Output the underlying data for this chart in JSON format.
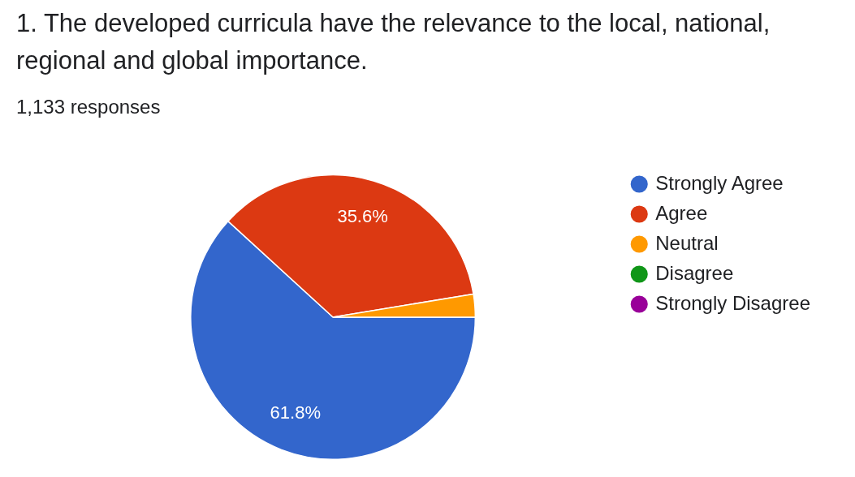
{
  "chart_data": {
    "type": "pie",
    "title": "1. The developed curricula have the relevance to the local, national, regional and global importance.",
    "subtitle": "1,133 responses",
    "categories": [
      "Strongly Agree",
      "Agree",
      "Neutral",
      "Disagree",
      "Strongly Disagree"
    ],
    "values": [
      61.8,
      35.6,
      2.6,
      0,
      0
    ],
    "colors": [
      "#3366cc",
      "#dc3912",
      "#ff9900",
      "#109618",
      "#990099"
    ],
    "value_labels": [
      "61.8%",
      "35.6%",
      null,
      null,
      null
    ],
    "legend": "right"
  }
}
